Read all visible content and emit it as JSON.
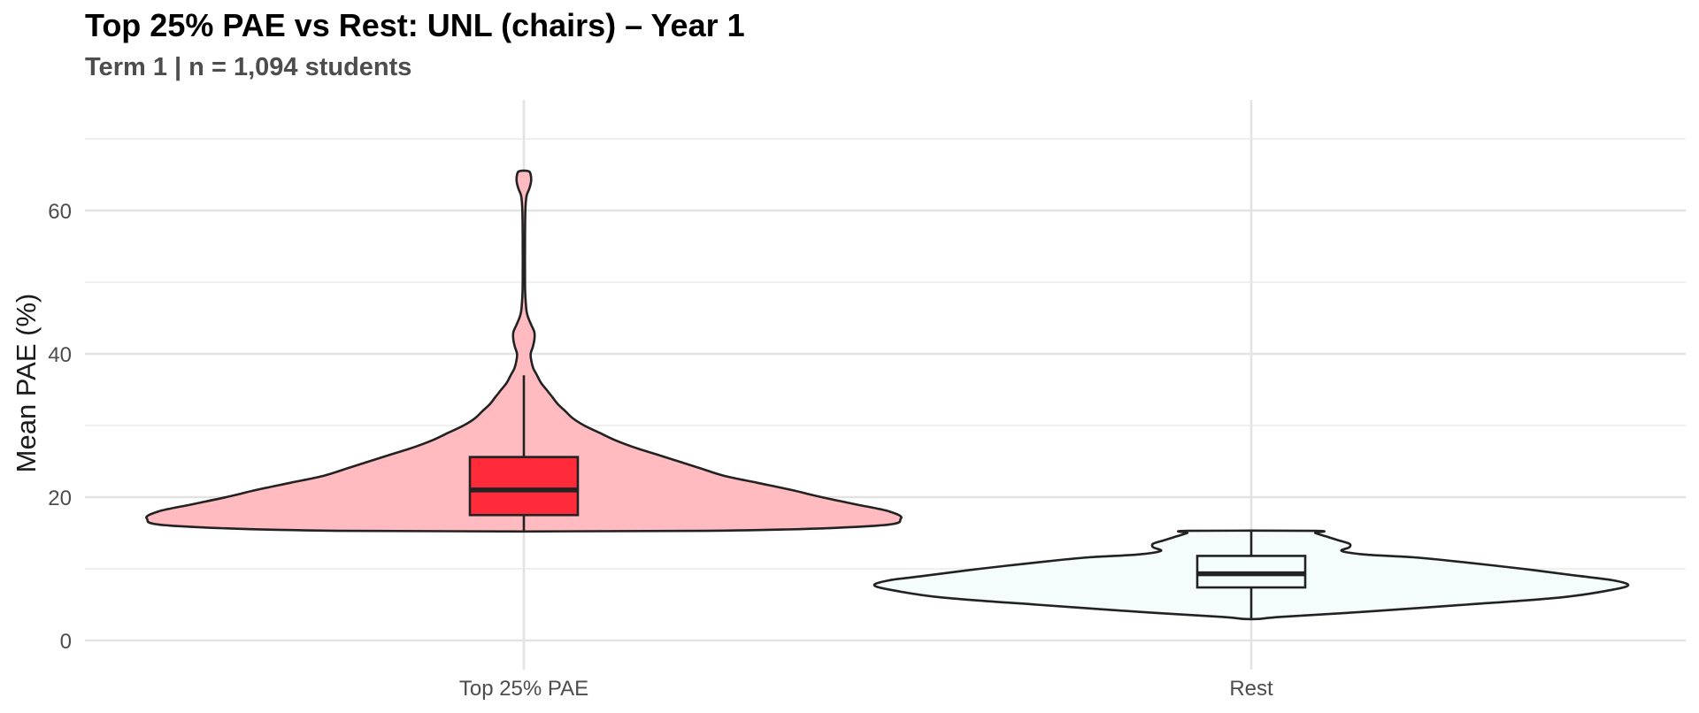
{
  "chart_data": {
    "type": "violin",
    "title": "Top 25% PAE vs Rest: UNL (chairs) – Year 1",
    "subtitle": "Term 1 | n = 1,094 students",
    "xlabel": "",
    "ylabel": "Mean PAE (%)",
    "ylim": [
      -2.3,
      71.5
    ],
    "yticks": [
      0,
      20,
      40,
      60
    ],
    "grid": true,
    "legend": "none",
    "categories": [
      "Top 25% PAE",
      "Rest"
    ],
    "series": [
      {
        "category": "Top 25% PAE",
        "violin_fill": "#ffbbc0",
        "box_fill": "#ff2a3a",
        "min": 15.3,
        "q1": 17.5,
        "median": 21.0,
        "q3": 25.6,
        "whisker_high": 37.0,
        "max": 65.5,
        "density_profile": [
          [
            15.3,
            0.48
          ],
          [
            16.0,
            0.93
          ],
          [
            17.0,
            1.0
          ],
          [
            18.0,
            0.97
          ],
          [
            19.0,
            0.88
          ],
          [
            20.0,
            0.79
          ],
          [
            21.0,
            0.71
          ],
          [
            22.0,
            0.62
          ],
          [
            23.0,
            0.53
          ],
          [
            24.0,
            0.47
          ],
          [
            25.0,
            0.41
          ],
          [
            26.0,
            0.35
          ],
          [
            27.0,
            0.29
          ],
          [
            28.0,
            0.24
          ],
          [
            29.0,
            0.2
          ],
          [
            30.0,
            0.16
          ],
          [
            31.0,
            0.13
          ],
          [
            32.0,
            0.11
          ],
          [
            33.0,
            0.09
          ],
          [
            34.0,
            0.075
          ],
          [
            35.0,
            0.06
          ],
          [
            36.0,
            0.045
          ],
          [
            37.0,
            0.035
          ],
          [
            38.0,
            0.025
          ],
          [
            39.0,
            0.02
          ],
          [
            40.0,
            0.018
          ],
          [
            41.0,
            0.024
          ],
          [
            42.0,
            0.028
          ],
          [
            43.0,
            0.028
          ],
          [
            44.0,
            0.02
          ],
          [
            45.0,
            0.012
          ],
          [
            46.0,
            0.007
          ],
          [
            48.0,
            0.004
          ],
          [
            50.0,
            0.003
          ],
          [
            55.0,
            0.003
          ],
          [
            60.0,
            0.004
          ],
          [
            62.0,
            0.007
          ],
          [
            63.0,
            0.014
          ],
          [
            64.0,
            0.019
          ],
          [
            65.0,
            0.018
          ],
          [
            65.5,
            0.012
          ]
        ]
      },
      {
        "category": "Rest",
        "violin_fill": "#f5fcfc",
        "box_fill": "#f5fcfc",
        "min": 3.0,
        "q1": 7.4,
        "median": 9.3,
        "q3": 11.8,
        "whisker_high": 15.3,
        "max": 15.3,
        "density_profile": [
          [
            3.0,
            0.02
          ],
          [
            3.3,
            0.08
          ],
          [
            4.0,
            0.3
          ],
          [
            5.0,
            0.57
          ],
          [
            6.0,
            0.82
          ],
          [
            7.0,
            0.95
          ],
          [
            7.7,
            1.0
          ],
          [
            8.4,
            0.96
          ],
          [
            9.0,
            0.87
          ],
          [
            10.0,
            0.72
          ],
          [
            11.0,
            0.55
          ],
          [
            11.6,
            0.43
          ],
          [
            12.0,
            0.3
          ],
          [
            12.5,
            0.24
          ],
          [
            13.0,
            0.26
          ],
          [
            13.5,
            0.26
          ],
          [
            14.0,
            0.23
          ],
          [
            14.5,
            0.2
          ],
          [
            15.0,
            0.17
          ],
          [
            15.3,
            0.17
          ]
        ]
      }
    ]
  }
}
